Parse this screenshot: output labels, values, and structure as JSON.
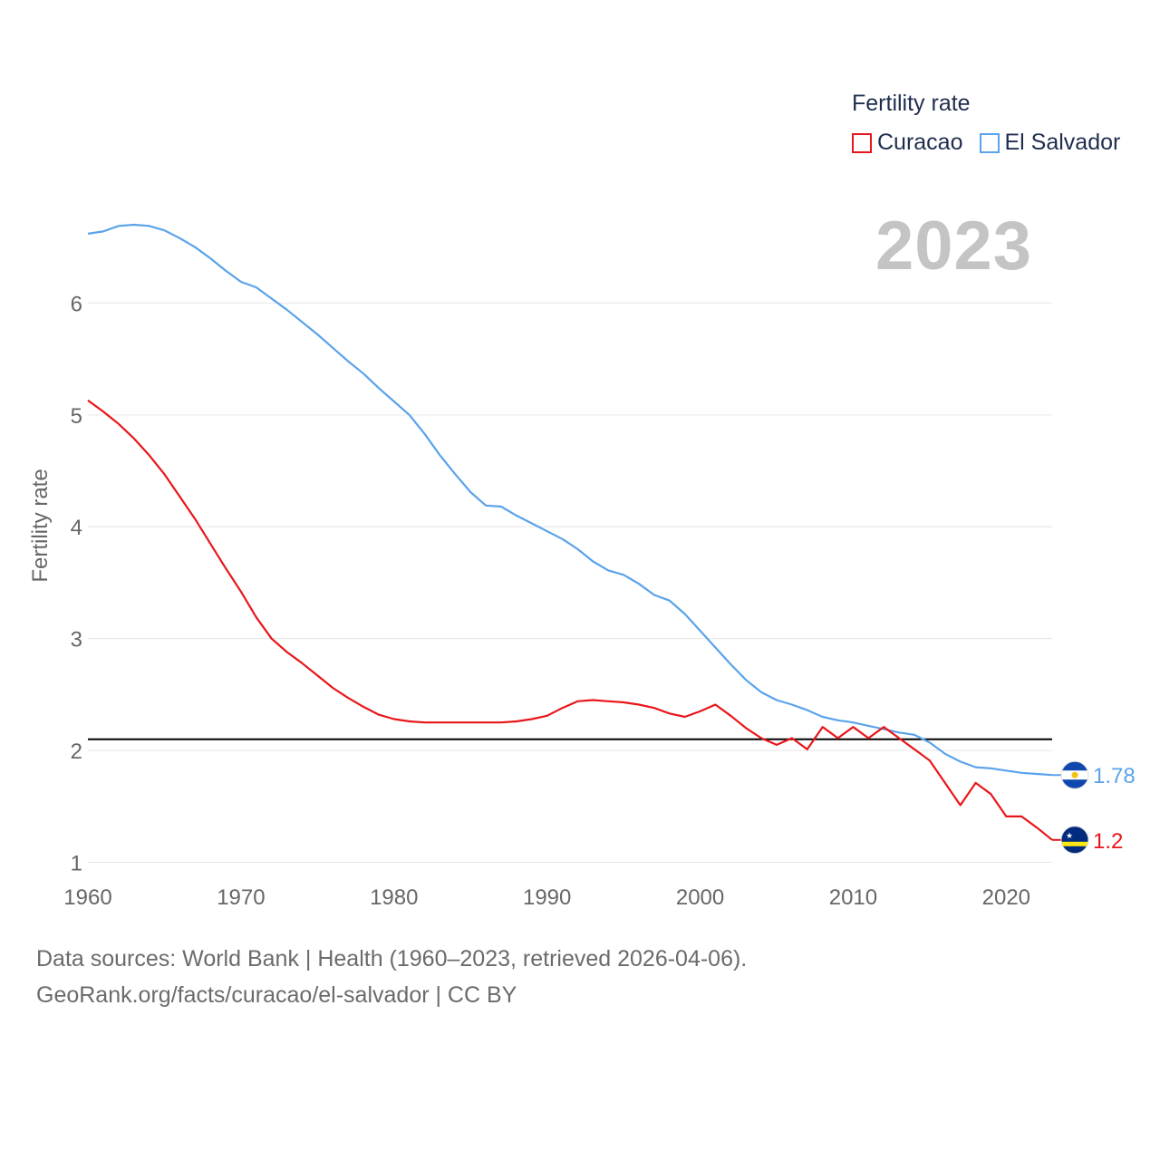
{
  "colors": {
    "curacao": "#e8161b",
    "el_salvador": "#5aa3ea",
    "axis_text": "#666666",
    "grid": "#e6e6e6",
    "reference": "#000000",
    "year": "#c4c4c4"
  },
  "legend": {
    "title": "Fertility rate",
    "items": [
      "Curacao",
      "El Salvador"
    ]
  },
  "year_label": "2023",
  "footer": {
    "line1": "Data sources: World Bank | Health (1960–2023, retrieved 2026-04-06).",
    "line2": "GeoRank.org/facts/curacao/el-salvador | CC BY"
  },
  "chart_data": {
    "type": "line",
    "title": "Fertility rate",
    "xlabel": "",
    "ylabel": "Fertility rate",
    "xlim": [
      1960,
      2023
    ],
    "ylim": [
      0.85,
      7.0
    ],
    "x_ticks": [
      1960,
      1970,
      1980,
      1990,
      2000,
      2010,
      2020
    ],
    "y_ticks": [
      1,
      2,
      3,
      4,
      5,
      6
    ],
    "grid": true,
    "reference_line": 2.1,
    "legend_position": "top-right",
    "x": [
      1960,
      1961,
      1962,
      1963,
      1964,
      1965,
      1966,
      1967,
      1968,
      1969,
      1970,
      1971,
      1972,
      1973,
      1974,
      1975,
      1976,
      1977,
      1978,
      1979,
      1980,
      1981,
      1982,
      1983,
      1984,
      1985,
      1986,
      1987,
      1988,
      1989,
      1990,
      1991,
      1992,
      1993,
      1994,
      1995,
      1996,
      1997,
      1998,
      1999,
      2000,
      2001,
      2002,
      2003,
      2004,
      2005,
      2006,
      2007,
      2008,
      2009,
      2010,
      2011,
      2012,
      2013,
      2014,
      2015,
      2016,
      2017,
      2018,
      2019,
      2020,
      2021,
      2022,
      2023
    ],
    "series": [
      {
        "name": "Curacao",
        "end_label": "1.2",
        "values": [
          5.13,
          5.03,
          4.92,
          4.79,
          4.64,
          4.47,
          4.27,
          4.07,
          3.85,
          3.63,
          3.42,
          3.19,
          3.0,
          2.88,
          2.78,
          2.67,
          2.56,
          2.47,
          2.39,
          2.32,
          2.28,
          2.26,
          2.25,
          2.25,
          2.25,
          2.25,
          2.25,
          2.25,
          2.26,
          2.28,
          2.31,
          2.38,
          2.44,
          2.45,
          2.44,
          2.43,
          2.41,
          2.38,
          2.33,
          2.3,
          2.35,
          2.41,
          2.31,
          2.2,
          2.11,
          2.05,
          2.11,
          2.01,
          2.21,
          2.11,
          2.21,
          2.11,
          2.21,
          2.11,
          2.01,
          1.91,
          1.71,
          1.51,
          1.71,
          1.61,
          1.41,
          1.41,
          1.31,
          1.2
        ]
      },
      {
        "name": "El Salvador",
        "end_label": "1.78",
        "values": [
          6.62,
          6.64,
          6.69,
          6.7,
          6.69,
          6.65,
          6.58,
          6.5,
          6.4,
          6.29,
          6.19,
          6.14,
          6.04,
          5.94,
          5.83,
          5.72,
          5.6,
          5.48,
          5.37,
          5.24,
          5.12,
          5.0,
          4.83,
          4.64,
          4.47,
          4.31,
          4.19,
          4.18,
          4.1,
          4.03,
          3.96,
          3.89,
          3.8,
          3.69,
          3.61,
          3.57,
          3.49,
          3.39,
          3.34,
          3.22,
          3.07,
          2.92,
          2.77,
          2.63,
          2.52,
          2.45,
          2.41,
          2.36,
          2.3,
          2.27,
          2.25,
          2.22,
          2.19,
          2.16,
          2.14,
          2.07,
          1.97,
          1.9,
          1.85,
          1.84,
          1.82,
          1.8,
          1.79,
          1.78
        ]
      }
    ]
  }
}
